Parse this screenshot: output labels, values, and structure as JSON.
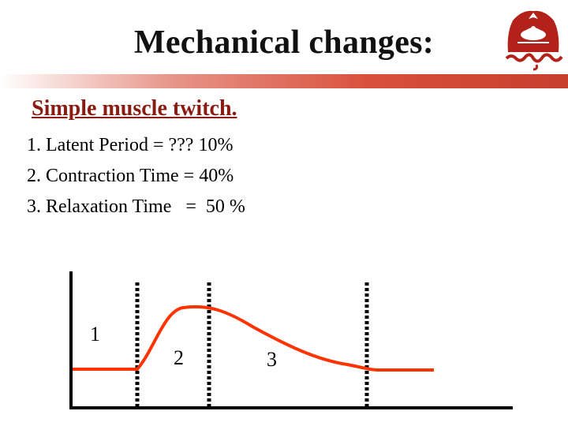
{
  "slide": {
    "title": "Mechanical changes:",
    "subtitle": "Simple muscle twitch.",
    "points": [
      "1. Latent Period = ??? 10%",
      "2. Contraction Time = 40%",
      "3. Relaxation Time   =  50 %"
    ]
  },
  "diagram": {
    "phase_labels": [
      "1",
      "2",
      "3"
    ],
    "colors": {
      "curve": "#ff3300",
      "axes": "#000000",
      "dividers": "#000000",
      "accent_bar": "#d9503c",
      "subtitle": "#8b1a12"
    }
  },
  "logo": {
    "icon": "university-seal-icon"
  }
}
